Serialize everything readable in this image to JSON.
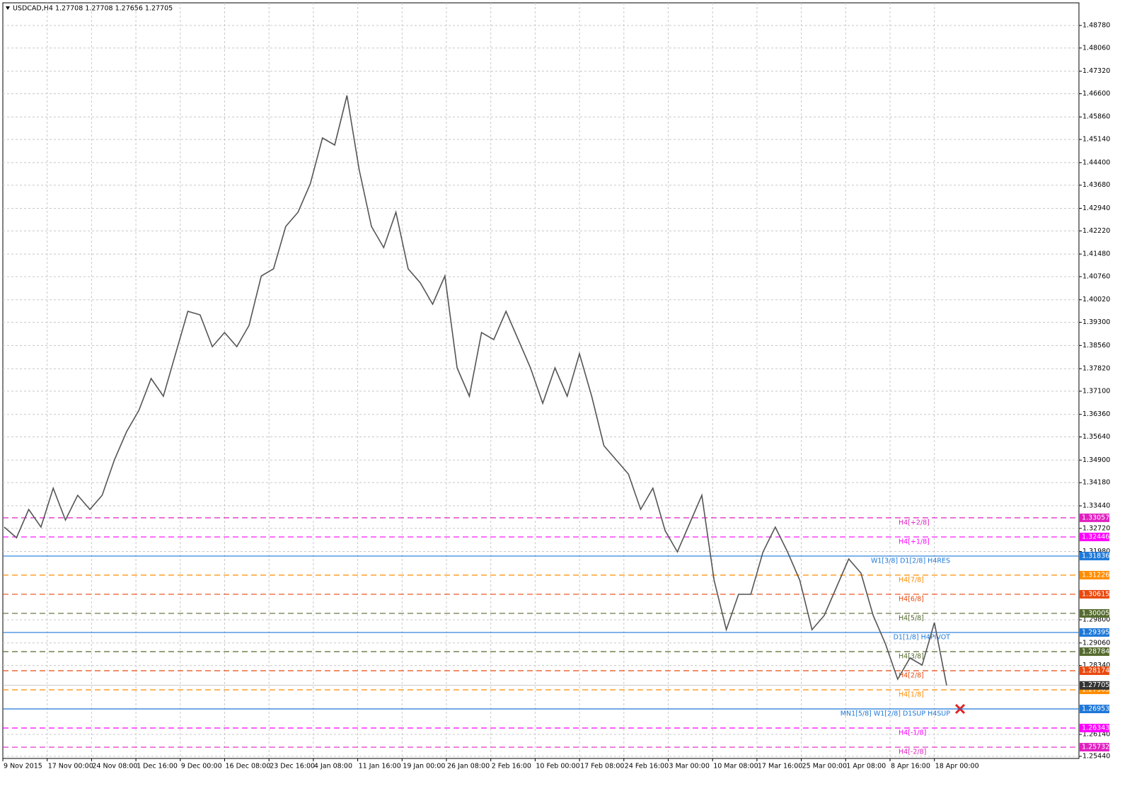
{
  "chart_data": {
    "type": "line",
    "title": "USDCAD,H4  1.27708 1.27708 1.27656 1.27705",
    "color": "#555555",
    "values": [
      1.32761,
      1.32422,
      1.33326,
      1.32761,
      1.34003,
      1.32987,
      1.33778,
      1.33326,
      1.33778,
      1.34907,
      1.35811,
      1.36489,
      1.37506,
      1.36941,
      1.38296,
      1.39652,
      1.39539,
      1.38522,
      1.38974,
      1.38522,
      1.392,
      1.40782,
      1.41008,
      1.42363,
      1.42815,
      1.43719,
      1.45188,
      1.44962,
      1.46543,
      1.44171,
      1.42363,
      1.41685,
      1.42815,
      1.41008,
      1.40556,
      1.39878,
      1.40782,
      1.37844,
      1.36941,
      1.38974,
      1.38748,
      1.39652,
      1.38748,
      1.37844,
      1.36715,
      1.37844,
      1.36941,
      1.38296,
      1.36941,
      1.35359,
      1.34907,
      1.34455,
      1.33326,
      1.34003,
      1.32648,
      1.3197,
      1.32874,
      1.33778,
      1.31066,
      1.29485,
      1.30614,
      1.30614,
      1.3197,
      1.32761,
      1.3197,
      1.31066,
      1.29485,
      1.29937,
      1.3084,
      1.31744,
      1.31292,
      1.29937,
      1.29033,
      1.27903,
      1.28581,
      1.28355,
      1.29711,
      1.27705
    ],
    "x_labels": [
      "9 Nov 2015",
      "17 Nov 00:00",
      "24 Nov 08:00",
      "1 Dec 16:00",
      "9 Dec 00:00",
      "16 Dec 08:00",
      "23 Dec 16:00",
      "4 Jan 08:00",
      "11 Jan 16:00",
      "19 Jan 00:00",
      "26 Jan 08:00",
      "2 Feb 16:00",
      "10 Feb 00:00",
      "17 Feb 08:00",
      "24 Feb 16:00",
      "3 Mar 00:00",
      "10 Mar 08:00",
      "17 Mar 16:00",
      "25 Mar 00:00",
      "1 Apr 08:00",
      "8 Apr 16:00",
      "18 Apr 00:00"
    ],
    "ylim": [
      1.25372,
      1.49503
    ],
    "yticks": [
      {
        "value": 1.4878,
        "label": "1.48780"
      },
      {
        "value": 1.4806,
        "label": "1.48060"
      },
      {
        "value": 1.4732,
        "label": "1.47320"
      },
      {
        "value": 1.466,
        "label": "1.46600"
      },
      {
        "value": 1.4586,
        "label": "1.45860"
      },
      {
        "value": 1.4514,
        "label": "1.45140"
      },
      {
        "value": 1.444,
        "label": "1.44400"
      },
      {
        "value": 1.4368,
        "label": "1.43680"
      },
      {
        "value": 1.4294,
        "label": "1.42940"
      },
      {
        "value": 1.4222,
        "label": "1.42220"
      },
      {
        "value": 1.4148,
        "label": "1.41480"
      },
      {
        "value": 1.4076,
        "label": "1.40760"
      },
      {
        "value": 1.4002,
        "label": "1.40020"
      },
      {
        "value": 1.393,
        "label": "1.39300"
      },
      {
        "value": 1.3856,
        "label": "1.38560"
      },
      {
        "value": 1.3782,
        "label": "1.37820"
      },
      {
        "value": 1.371,
        "label": "1.37100"
      },
      {
        "value": 1.3636,
        "label": "1.36360"
      },
      {
        "value": 1.3564,
        "label": "1.35640"
      },
      {
        "value": 1.349,
        "label": "1.34900"
      },
      {
        "value": 1.3418,
        "label": "1.34180"
      },
      {
        "value": 1.3344,
        "label": "1.33440"
      },
      {
        "value": 1.3272,
        "label": "1.32720"
      },
      {
        "value": 1.3198,
        "label": "1.31980"
      },
      {
        "value": 1.298,
        "label": "1.29800"
      },
      {
        "value": 1.2906,
        "label": "1.29060"
      },
      {
        "value": 1.2834,
        "label": "1.28340"
      },
      {
        "value": 1.2614,
        "label": "1.26140"
      },
      {
        "value": 1.2544,
        "label": "1.25440"
      }
    ],
    "grid": true,
    "current_price": 1.27705,
    "levels": [
      {
        "value": 1.33057,
        "label": "H4[+2/8]",
        "color": "#e020c0",
        "style": "dashed"
      },
      {
        "value": 1.32446,
        "label": "H4[+1/8]",
        "color": "#ff00ff",
        "style": "dashed"
      },
      {
        "value": 1.31836,
        "label": "W1[3/8] D1[2/8] H4RES",
        "color": "#1e78d8",
        "style": "solid"
      },
      {
        "value": 1.31226,
        "label": "H4[7/8]",
        "color": "#ff8c00",
        "style": "dashed"
      },
      {
        "value": 1.30615,
        "label": "H4[6/8]",
        "color": "#e84a10",
        "style": "dashed"
      },
      {
        "value": 1.30005,
        "label": "H4[5/8]",
        "color": "#556b2f",
        "style": "dashed"
      },
      {
        "value": 1.29395,
        "label": "D1[1/8] H4PIVOT",
        "color": "#1e78d8",
        "style": "solid"
      },
      {
        "value": 1.28784,
        "label": "H4[3/8]",
        "color": "#556b2f",
        "style": "dashed"
      },
      {
        "value": 1.28174,
        "label": "H4[2/8]",
        "color": "#e84a10",
        "style": "dashed"
      },
      {
        "value": 1.27563,
        "label": "H4[1/8]",
        "color": "#ff8c00",
        "style": "dashed"
      },
      {
        "value": 1.26953,
        "label": "MN1[5/8] W1[2/8] D1SUP H4SUP",
        "color": "#1e78d8",
        "style": "solid"
      },
      {
        "value": 1.26343,
        "label": "H4[-1/8]",
        "color": "#ff00ff",
        "style": "dashed"
      },
      {
        "value": 1.25732,
        "label": "H4[-2/8]",
        "color": "#e020c0",
        "style": "dashed"
      }
    ]
  }
}
